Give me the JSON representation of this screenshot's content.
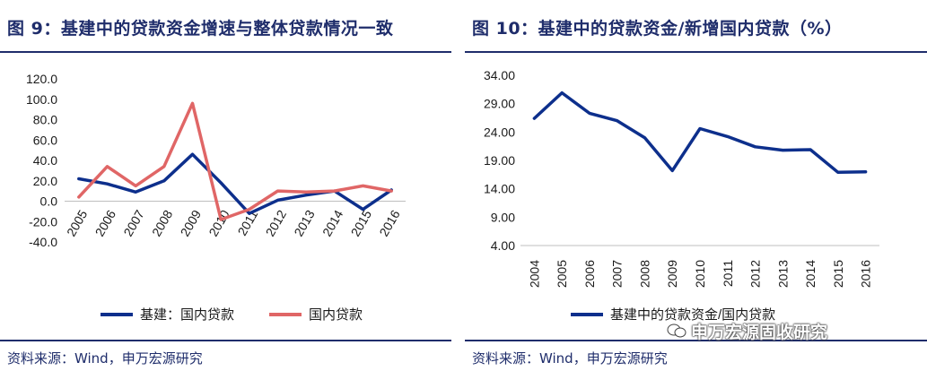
{
  "left": {
    "title": "图 9：基建中的贷款资金增速与整体贷款情况一致",
    "source": "资料来源：Wind，申万宏源研究"
  },
  "right": {
    "title": "图 10：基建中的贷款资金/新增国内贷款（%）",
    "source": "资料来源：Wind，申万宏源研究"
  },
  "watermark": "申万宏源固收研究",
  "colors": {
    "navy": "#1f2d6b",
    "line_blue": "#0d2f8c",
    "line_red": "#e06666",
    "text": "#1a1a1a"
  },
  "chart_data": [
    {
      "type": "line",
      "title": "",
      "xlabel": "",
      "ylabel": "",
      "categories": [
        "2005",
        "2006",
        "2007",
        "2008",
        "2009",
        "2010",
        "2011",
        "2012",
        "2013",
        "2014",
        "2015",
        "2016"
      ],
      "y_ticks": [
        "120.0",
        "100.0",
        "80.0",
        "60.0",
        "40.0",
        "20.0",
        "0.0",
        "-20.0",
        "-40.0"
      ],
      "ylim": [
        -40,
        120
      ],
      "grid": false,
      "legend": "bottom",
      "series": [
        {
          "name": "基建：国内贷款",
          "color": "#0d2f8c",
          "values": [
            22,
            17,
            9,
            20,
            46,
            18,
            -12,
            1,
            6,
            10,
            -8,
            11
          ]
        },
        {
          "name": "国内贷款",
          "color": "#e06666",
          "values": [
            4,
            34,
            15,
            34,
            96,
            -18,
            -8,
            10,
            9,
            10,
            15,
            10
          ]
        }
      ]
    },
    {
      "type": "line",
      "title": "",
      "xlabel": "",
      "ylabel": "",
      "categories": [
        "2004",
        "2005",
        "2006",
        "2007",
        "2008",
        "2009",
        "2010",
        "2011",
        "2012",
        "2013",
        "2014",
        "2015",
        "2016"
      ],
      "y_ticks": [
        "34.00",
        "29.00",
        "24.00",
        "19.00",
        "14.00",
        "9.00",
        "4.00"
      ],
      "ylim": [
        4,
        34
      ],
      "grid": false,
      "legend": "bottom",
      "series": [
        {
          "name": "基建中的贷款资金/国内贷款",
          "color": "#0d2f8c",
          "values": [
            26.4,
            30.9,
            27.3,
            26.0,
            23.0,
            17.2,
            24.6,
            23.2,
            21.4,
            20.8,
            20.9,
            16.9,
            17.0
          ]
        }
      ]
    }
  ]
}
